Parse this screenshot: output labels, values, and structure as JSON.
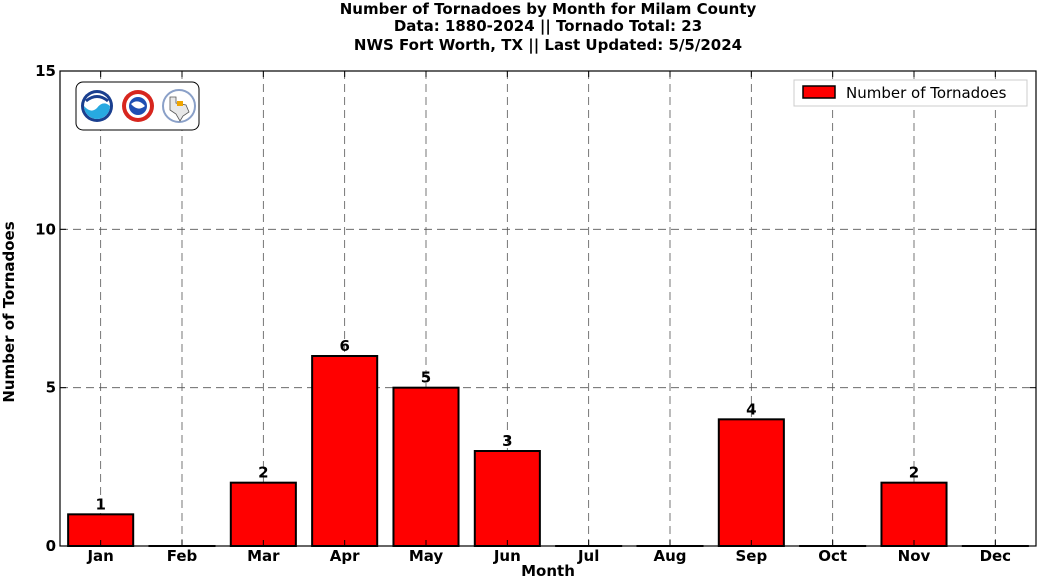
{
  "chart_data": {
    "type": "bar",
    "title_lines": [
      "Number of Tornadoes by Month for Milam County",
      "Data: 1880-2024 || Tornado Total: 23",
      "NWS Fort Worth, TX || Last Updated: 5/5/2024"
    ],
    "xlabel": "Month",
    "ylabel": "Number of Tornadoes",
    "categories": [
      "Jan",
      "Feb",
      "Mar",
      "Apr",
      "May",
      "Jun",
      "Jul",
      "Aug",
      "Sep",
      "Oct",
      "Nov",
      "Dec"
    ],
    "series": [
      {
        "name": "Number of Tornadoes",
        "values": [
          1,
          0,
          2,
          6,
          5,
          3,
          0,
          0,
          4,
          0,
          2,
          0
        ],
        "color": "#ff0000"
      }
    ],
    "data_labels": [
      "1",
      "",
      "2",
      "6",
      "5",
      "3",
      "",
      "",
      "4",
      "",
      "2",
      ""
    ],
    "ylim": [
      0,
      15
    ],
    "yticks": [
      0,
      5,
      10,
      15
    ],
    "grid": true,
    "legend_position": "top-right"
  },
  "logos": [
    "noaa-logo",
    "nws-logo",
    "texas-logo"
  ]
}
